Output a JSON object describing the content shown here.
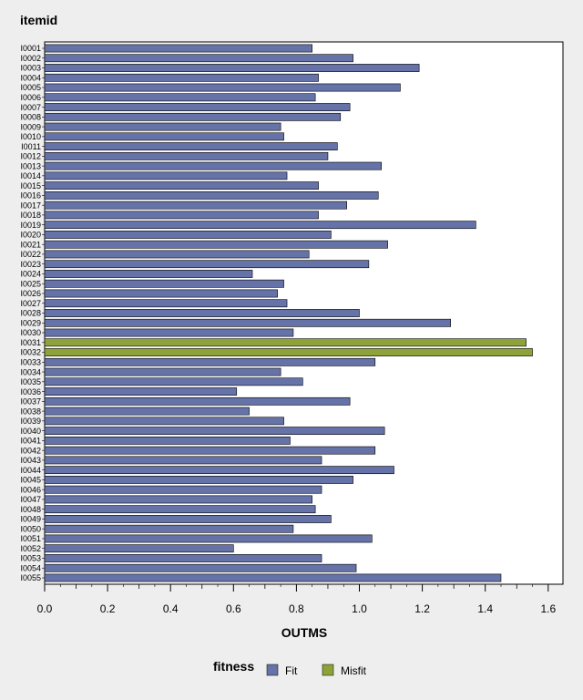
{
  "chart_data": {
    "type": "bar",
    "orientation": "horizontal",
    "title": "itemid",
    "xlabel": "OUTMS",
    "xlim": [
      0,
      1.65
    ],
    "xticks": [
      "0.0",
      "0.2",
      "0.4",
      "0.6",
      "0.8",
      "1.0",
      "1.2",
      "1.4",
      "1.6"
    ],
    "legend": {
      "title": "fitness",
      "placement": "bottom",
      "entries": [
        {
          "name": "Fit",
          "color": "#6673a8"
        },
        {
          "name": "Misfit",
          "color": "#8da33a"
        }
      ]
    },
    "categories": [
      "I0001",
      "I0002",
      "I0003",
      "I0004",
      "I0005",
      "I0006",
      "I0007",
      "I0008",
      "I0009",
      "I0010",
      "I0011",
      "I0012",
      "I0013",
      "I0014",
      "I0015",
      "I0016",
      "I0017",
      "I0018",
      "I0019",
      "I0020",
      "I0021",
      "I0022",
      "I0023",
      "I0024",
      "I0025",
      "I0026",
      "I0027",
      "I0028",
      "I0029",
      "I0030",
      "I0031",
      "I0032",
      "I0033",
      "I0034",
      "I0035",
      "I0036",
      "I0037",
      "I0038",
      "I0039",
      "I0040",
      "I0041",
      "I0042",
      "I0043",
      "I0044",
      "I0045",
      "I0046",
      "I0047",
      "I0048",
      "I0049",
      "I0050",
      "I0051",
      "I0052",
      "I0053",
      "I0054",
      "I0055"
    ],
    "values": [
      0.85,
      0.98,
      1.19,
      0.87,
      1.13,
      0.86,
      0.97,
      0.94,
      0.75,
      0.76,
      0.93,
      0.9,
      1.07,
      0.77,
      0.87,
      1.06,
      0.96,
      0.87,
      1.37,
      0.91,
      1.09,
      0.84,
      1.03,
      0.66,
      0.76,
      0.74,
      0.77,
      1.0,
      1.29,
      0.79,
      1.53,
      1.55,
      1.05,
      0.75,
      0.82,
      0.61,
      0.97,
      0.65,
      0.76,
      1.08,
      0.78,
      1.05,
      0.88,
      1.11,
      0.98,
      0.88,
      0.85,
      0.86,
      0.91,
      0.79,
      1.04,
      0.6,
      0.88,
      0.99,
      1.45
    ],
    "fitness": [
      "Fit",
      "Fit",
      "Fit",
      "Fit",
      "Fit",
      "Fit",
      "Fit",
      "Fit",
      "Fit",
      "Fit",
      "Fit",
      "Fit",
      "Fit",
      "Fit",
      "Fit",
      "Fit",
      "Fit",
      "Fit",
      "Fit",
      "Fit",
      "Fit",
      "Fit",
      "Fit",
      "Fit",
      "Fit",
      "Fit",
      "Fit",
      "Fit",
      "Fit",
      "Fit",
      "Misfit",
      "Misfit",
      "Fit",
      "Fit",
      "Fit",
      "Fit",
      "Fit",
      "Fit",
      "Fit",
      "Fit",
      "Fit",
      "Fit",
      "Fit",
      "Fit",
      "Fit",
      "Fit",
      "Fit",
      "Fit",
      "Fit",
      "Fit",
      "Fit",
      "Fit",
      "Fit",
      "Fit",
      "Fit"
    ],
    "grid": false
  }
}
